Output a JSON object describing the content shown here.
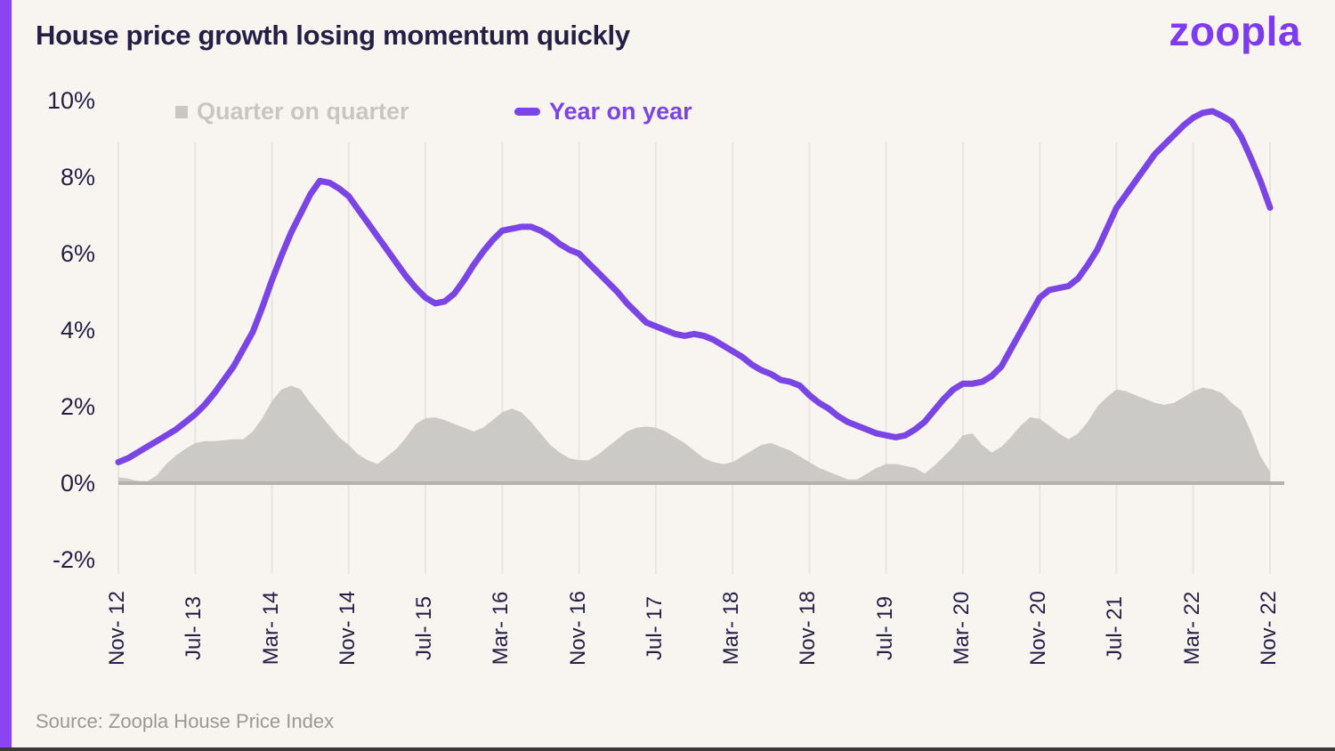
{
  "page": {
    "background": "#f8f5f1",
    "accent_bar_color": "#8a45f2",
    "bottom_strip_color": "#3a3a3a",
    "gridline_color": "#e9e6e2",
    "baseline_color": "#b5b1ae",
    "ink_color": "#241f45"
  },
  "header": {
    "title": "House price growth losing momentum quickly",
    "logo_text": "zoopla",
    "logo_color": "#7d3af2"
  },
  "legend": [
    {
      "label": "Quarter on quarter",
      "swatch": "square-icon",
      "color": "#cac6c4",
      "text_color": "#c9c5c3"
    },
    {
      "label": "Year on year",
      "swatch": "dash-icon",
      "color": "#7b45e6",
      "text_color": "#7b45e6"
    }
  ],
  "footer": {
    "source": "Source: Zoopla House Price Index"
  },
  "chart_data": {
    "type": "area+line",
    "title": "House price growth losing momentum quickly",
    "x_start": "Nov-12",
    "x_end": "Nov-22",
    "x_step": "1 month",
    "n_points": 121,
    "x_tick_labels": [
      "Nov- 12",
      "Jul- 13",
      "Mar- 14",
      "Nov- 14",
      "Jul- 15",
      "Mar- 16",
      "Nov- 16",
      "Jul- 17",
      "Mar- 18",
      "Nov- 18",
      "Jul- 19",
      "Mar- 20",
      "Nov- 20",
      "Jul- 21",
      "Mar- 22",
      "Nov- 22"
    ],
    "y_tick_labels": [
      "10%",
      "8%",
      "6%",
      "4%",
      "2%",
      "0%",
      "-2%"
    ],
    "y_tick_values": [
      10,
      8,
      6,
      4,
      2,
      0,
      -2
    ],
    "ylim": [
      -2.6,
      10.4
    ],
    "grid": "vertical-only",
    "legend_position": "top",
    "unit": "percent",
    "series": [
      {
        "name": "Quarter on quarter",
        "type": "area",
        "color": "#cccac7",
        "values": [
          0.15,
          0.12,
          0.06,
          0.05,
          0.2,
          0.5,
          0.72,
          0.9,
          1.05,
          1.1,
          1.1,
          1.12,
          1.15,
          1.15,
          1.35,
          1.7,
          2.15,
          2.45,
          2.55,
          2.45,
          2.1,
          1.8,
          1.5,
          1.2,
          1.0,
          0.75,
          0.6,
          0.5,
          0.7,
          0.9,
          1.2,
          1.55,
          1.7,
          1.72,
          1.65,
          1.55,
          1.45,
          1.35,
          1.45,
          1.65,
          1.85,
          1.95,
          1.85,
          1.6,
          1.3,
          1.0,
          0.8,
          0.65,
          0.6,
          0.6,
          0.75,
          0.95,
          1.15,
          1.35,
          1.45,
          1.48,
          1.45,
          1.35,
          1.2,
          1.05,
          0.85,
          0.65,
          0.55,
          0.5,
          0.55,
          0.7,
          0.85,
          1.0,
          1.05,
          0.95,
          0.85,
          0.7,
          0.55,
          0.4,
          0.3,
          0.2,
          0.1,
          0.1,
          0.25,
          0.4,
          0.5,
          0.5,
          0.45,
          0.4,
          0.25,
          0.45,
          0.7,
          0.95,
          1.25,
          1.3,
          1.0,
          0.8,
          0.95,
          1.2,
          1.5,
          1.72,
          1.68,
          1.5,
          1.3,
          1.15,
          1.3,
          1.6,
          2.0,
          2.25,
          2.45,
          2.4,
          2.3,
          2.2,
          2.1,
          2.05,
          2.1,
          2.25,
          2.4,
          2.5,
          2.45,
          2.35,
          2.1,
          1.9,
          1.35,
          0.7,
          0.3
        ]
      },
      {
        "name": "Year on year",
        "type": "line",
        "color": "#7b45e6",
        "values": [
          0.55,
          0.65,
          0.8,
          0.95,
          1.1,
          1.25,
          1.4,
          1.6,
          1.8,
          2.05,
          2.35,
          2.7,
          3.05,
          3.5,
          3.95,
          4.6,
          5.3,
          5.95,
          6.55,
          7.05,
          7.55,
          7.9,
          7.85,
          7.7,
          7.5,
          7.15,
          6.8,
          6.45,
          6.1,
          5.75,
          5.4,
          5.1,
          4.85,
          4.7,
          4.75,
          4.95,
          5.3,
          5.7,
          6.05,
          6.35,
          6.6,
          6.65,
          6.7,
          6.7,
          6.6,
          6.45,
          6.25,
          6.1,
          6.0,
          5.75,
          5.5,
          5.25,
          5.0,
          4.7,
          4.45,
          4.2,
          4.1,
          4.0,
          3.9,
          3.85,
          3.9,
          3.85,
          3.75,
          3.6,
          3.45,
          3.3,
          3.1,
          2.95,
          2.85,
          2.7,
          2.65,
          2.55,
          2.3,
          2.1,
          1.95,
          1.75,
          1.6,
          1.5,
          1.4,
          1.3,
          1.25,
          1.2,
          1.25,
          1.4,
          1.6,
          1.9,
          2.2,
          2.45,
          2.6,
          2.6,
          2.65,
          2.8,
          3.05,
          3.5,
          3.95,
          4.4,
          4.85,
          5.05,
          5.1,
          5.15,
          5.35,
          5.7,
          6.1,
          6.65,
          7.2,
          7.55,
          7.9,
          8.25,
          8.6,
          8.85,
          9.1,
          9.35,
          9.55,
          9.68,
          9.72,
          9.6,
          9.45,
          9.05,
          8.5,
          7.9,
          7.2
        ]
      }
    ]
  }
}
